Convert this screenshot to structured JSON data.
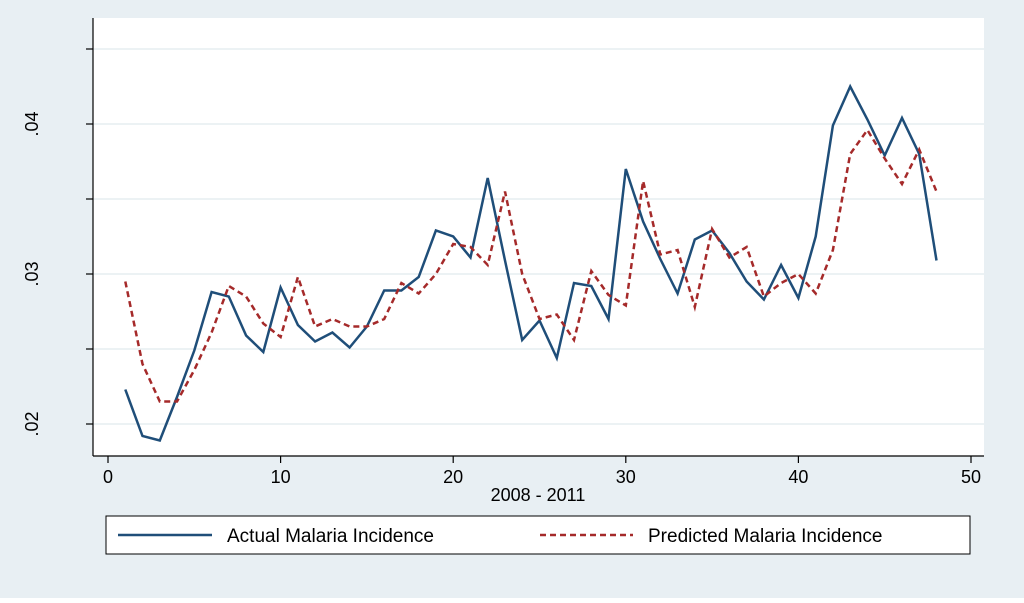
{
  "chart_data": {
    "type": "line",
    "title": "",
    "xlabel": "2008 - 2011",
    "ylabel": "",
    "xlim": [
      0,
      50
    ],
    "ylim": [
      0.019,
      0.0462
    ],
    "x_ticks": [
      0,
      10,
      20,
      30,
      40,
      50
    ],
    "x_tick_labels": [
      "0",
      "10",
      "20",
      "30",
      "40",
      "50"
    ],
    "y_ticks_major": [
      0.02,
      0.03,
      0.04
    ],
    "y_tick_labels": [
      ".02",
      ".03",
      ".04"
    ],
    "y_ticks_minor": [
      0.025,
      0.035,
      0.045
    ],
    "grid": true,
    "legend_position": "bottom",
    "colors": {
      "outer_background": "#e8eff3",
      "plot_background": "#ffffff",
      "grid": "#e6edf1",
      "actual": "#1f4e79",
      "predicted": "#a52a2a"
    },
    "x": [
      1,
      2,
      3,
      4,
      5,
      6,
      7,
      8,
      9,
      10,
      11,
      12,
      13,
      14,
      15,
      16,
      17,
      18,
      19,
      20,
      21,
      22,
      23,
      24,
      25,
      26,
      27,
      28,
      29,
      30,
      31,
      32,
      33,
      34,
      35,
      36,
      37,
      38,
      39,
      40,
      41,
      42,
      43,
      44,
      45,
      46,
      47,
      48
    ],
    "series": [
      {
        "name": "Actual Malaria Incidence",
        "style": "solid",
        "values": [
          0.0223,
          0.0192,
          0.0189,
          0.0218,
          0.0249,
          0.0288,
          0.0285,
          0.0259,
          0.0248,
          0.0291,
          0.0266,
          0.0255,
          0.0261,
          0.0251,
          0.0265,
          0.0289,
          0.0289,
          0.0298,
          0.0329,
          0.0325,
          0.0311,
          0.0364,
          0.0309,
          0.0256,
          0.0269,
          0.0244,
          0.0294,
          0.0292,
          0.027,
          0.037,
          0.0335,
          0.031,
          0.0287,
          0.0323,
          0.0329,
          0.0314,
          0.0295,
          0.0283,
          0.0306,
          0.0284,
          0.0325,
          0.0399,
          0.0425,
          0.0403,
          0.0379,
          0.0404,
          0.038,
          0.0309
        ]
      },
      {
        "name": "Predicted Malaria Incidence",
        "style": "dashed",
        "values": [
          0.0295,
          0.024,
          0.0215,
          0.0215,
          0.0236,
          0.0261,
          0.0292,
          0.0285,
          0.0267,
          0.0258,
          0.0298,
          0.0265,
          0.027,
          0.0265,
          0.0265,
          0.027,
          0.0294,
          0.0287,
          0.03,
          0.032,
          0.0318,
          0.0306,
          0.0355,
          0.03,
          0.027,
          0.0273,
          0.0256,
          0.0302,
          0.0286,
          0.0279,
          0.0362,
          0.0313,
          0.0316,
          0.0278,
          0.033,
          0.0311,
          0.0318,
          0.0285,
          0.0294,
          0.03,
          0.0287,
          0.0316,
          0.038,
          0.0396,
          0.0377,
          0.036,
          0.0383,
          0.0355
        ]
      }
    ]
  }
}
